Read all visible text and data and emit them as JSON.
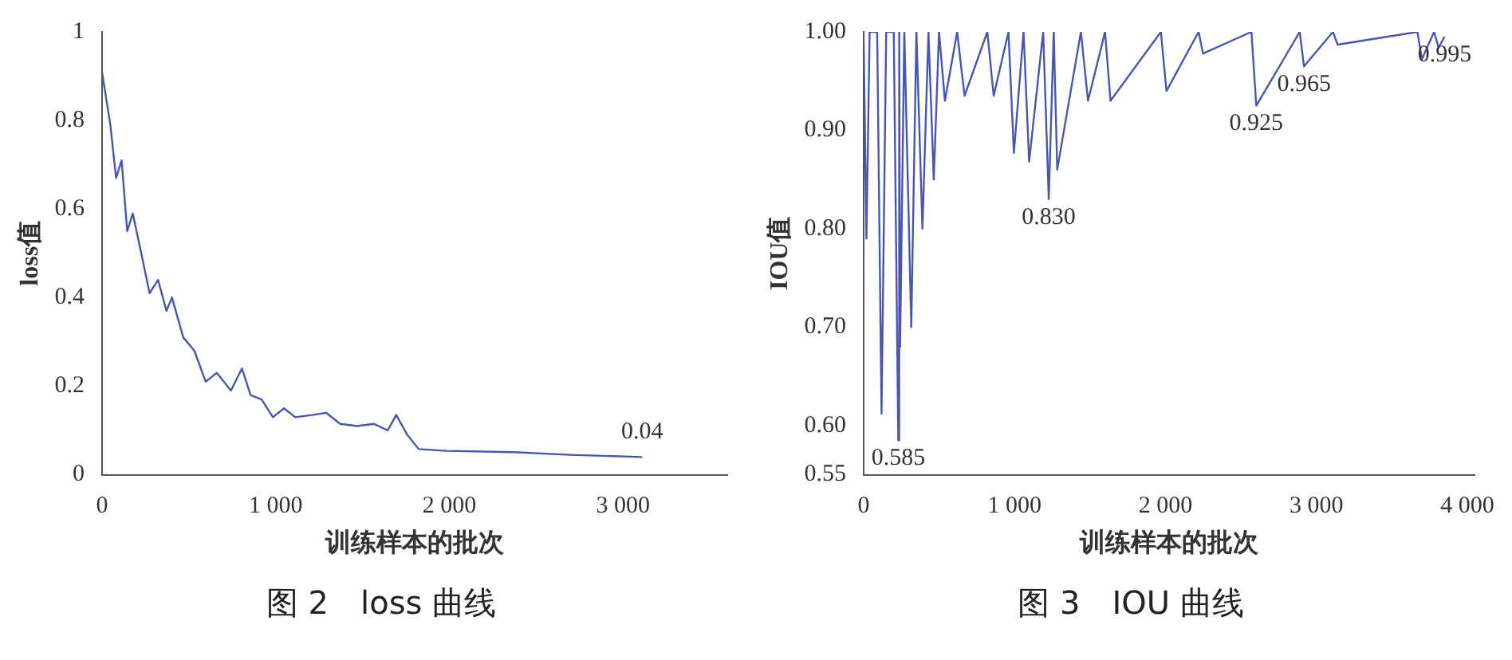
{
  "chart_data": [
    {
      "type": "line",
      "xlabel": "训练样本的批次",
      "ylabel": "loss值",
      "xlim": [
        0,
        3600
      ],
      "ylim": [
        0,
        1
      ],
      "xticks": [
        0,
        {
          "value": 1000,
          "label": "1 000"
        },
        {
          "value": 2000,
          "label": "2 000"
        },
        {
          "value": 3000,
          "label": "3 000"
        }
      ],
      "yticks": [
        0,
        0.2,
        0.4,
        0.6,
        0.8,
        1
      ],
      "grid": false,
      "legend": false,
      "marker": "none",
      "line_style": "solid",
      "x": [
        0,
        48,
        81,
        113,
        145,
        177,
        226,
        274,
        323,
        371,
        403,
        468,
        532,
        597,
        661,
        742,
        806,
        855,
        919,
        984,
        1048,
        1113,
        1210,
        1290,
        1371,
        1468,
        1565,
        1645,
        1694,
        1758,
        1823,
        1984,
        2371,
        2694,
        3110
      ],
      "series": [
        {
          "color": "#4a55b0",
          "values": [
            0.91,
            0.79,
            0.67,
            0.71,
            0.55,
            0.59,
            0.5,
            0.41,
            0.44,
            0.37,
            0.4,
            0.31,
            0.28,
            0.21,
            0.23,
            0.19,
            0.24,
            0.18,
            0.17,
            0.13,
            0.15,
            0.13,
            0.135,
            0.14,
            0.115,
            0.11,
            0.115,
            0.1,
            0.135,
            0.09,
            0.058,
            0.054,
            0.051,
            0.045,
            0.04
          ]
        }
      ],
      "annotations": [
        {
          "text": "0.04",
          "x": 3110,
          "y": 0.04
        },
        "图 2　loss 曲线"
      ]
    },
    {
      "type": "line",
      "xlabel": "训练样本的批次",
      "ylabel": "IOU值",
      "xlim": [
        0,
        4050
      ],
      "ylim": [
        0.55,
        1.0
      ],
      "xticks": [
        0,
        {
          "value": 1000,
          "label": "1 000"
        },
        {
          "value": 2000,
          "label": "2 000"
        },
        {
          "value": 3000,
          "label": "3 000"
        },
        {
          "value": 4000,
          "label": "4 000"
        }
      ],
      "yticks": [
        0.55,
        {
          "value": 0.6,
          "label": "0.60"
        },
        {
          "value": 0.7,
          "label": "0.70"
        },
        {
          "value": 0.8,
          "label": "0.80"
        },
        {
          "value": 0.9,
          "label": "0.90"
        },
        {
          "value": 1.0,
          "label": "1.00"
        }
      ],
      "grid": false,
      "legend": false,
      "marker": "none",
      "line_style": "solid",
      "x": [
        0,
        19,
        40,
        90,
        119,
        150,
        200,
        230,
        236,
        242,
        270,
        316,
        350,
        390,
        430,
        465,
        500,
        539,
        620,
        669,
        820,
        862,
        960,
        996,
        1060,
        1097,
        1190,
        1227,
        1260,
        1283,
        1440,
        1487,
        1600,
        1636,
        1970,
        2007,
        2220,
        2249,
        2570,
        2602,
        2890,
        2918,
        3110,
        3141,
        3670,
        3699,
        3780,
        3810,
        3850
      ],
      "series": [
        {
          "color": "#4a55b0",
          "values": [
            1.0,
            0.79,
            1.0,
            1.0,
            0.612,
            1.0,
            1.0,
            0.585,
            1.0,
            0.68,
            1.0,
            0.7,
            1.0,
            0.8,
            1.0,
            0.85,
            1.0,
            0.93,
            1.0,
            0.935,
            1.0,
            0.935,
            1.0,
            0.877,
            1.0,
            0.868,
            1.0,
            0.83,
            1.0,
            0.86,
            1.0,
            0.93,
            1.0,
            0.93,
            1.0,
            0.94,
            1.0,
            0.978,
            1.0,
            0.925,
            1.0,
            0.965,
            1.0,
            0.987,
            1.0,
            0.972,
            1.0,
            0.984,
            0.995
          ]
        }
      ],
      "annotations": [
        {
          "text": "0.585",
          "x": 230,
          "y": 0.585
        },
        {
          "text": "0.830",
          "x": 1227,
          "y": 0.83
        },
        {
          "text": "0.925",
          "x": 2602,
          "y": 0.925
        },
        {
          "text": "0.965",
          "x": 2918,
          "y": 0.965
        },
        {
          "text": "0.995",
          "x": 3850,
          "y": 0.995
        },
        "图 3　IOU 曲线"
      ]
    }
  ]
}
